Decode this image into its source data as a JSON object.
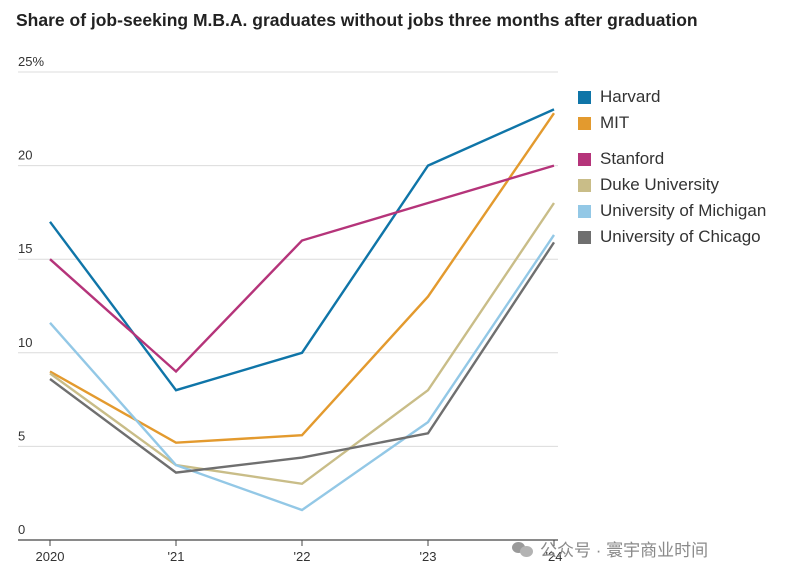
{
  "chart_data": {
    "type": "line",
    "title": "Share of job-seeking M.B.A. graduates without jobs three months after graduation",
    "x": [
      "2020",
      "'21",
      "'22",
      "'23",
      "'24"
    ],
    "y_ticks": [
      "25%",
      "20",
      "15",
      "10",
      "5",
      "0"
    ],
    "ylim": [
      0,
      25
    ],
    "grid": true,
    "legend_position": "right",
    "series": [
      {
        "name": "Harvard",
        "color": "#0f75a8",
        "values": [
          17,
          8,
          10,
          20,
          23
        ]
      },
      {
        "name": "MIT",
        "color": "#e39a2e",
        "values": [
          9,
          5.2,
          5.6,
          13,
          22.8
        ]
      },
      {
        "name": "Stanford",
        "color": "#b5347a",
        "values": [
          15,
          9,
          16,
          18,
          20
        ]
      },
      {
        "name": "Duke University",
        "color": "#c9bd88",
        "values": [
          8.9,
          4,
          3,
          8,
          18
        ]
      },
      {
        "name": "University of Michigan",
        "color": "#93c8e6",
        "values": [
          11.6,
          4,
          1.6,
          6.3,
          16.3
        ]
      },
      {
        "name": "University of Chicago",
        "color": "#6f6f6f",
        "values": [
          8.6,
          3.6,
          4.4,
          5.7,
          15.9
        ]
      }
    ]
  },
  "watermark": "公众号 · 寰宇商业时间"
}
